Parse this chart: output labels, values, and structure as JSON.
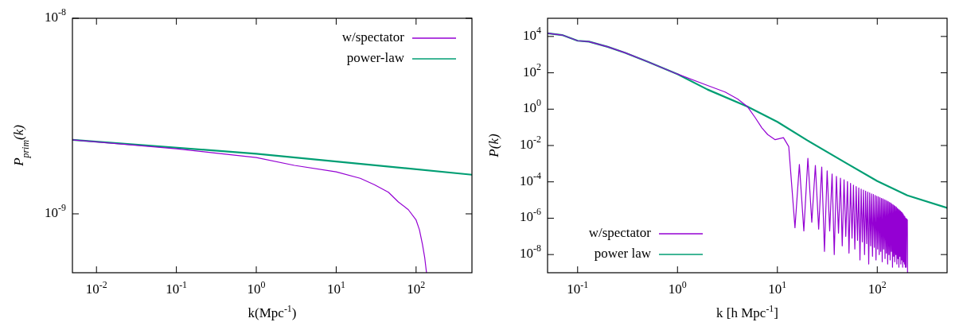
{
  "chart_data": [
    {
      "type": "line",
      "xlabel": "k(Mpc$^{-1}$)",
      "ylabel": "P$_{prim}$(k)",
      "log": "xy",
      "legend": "top right",
      "xlim": [
        0.005,
        500
      ],
      "ylim": [
        5e-10,
        1e-08
      ],
      "xticks": [
        {
          "value": 0.01,
          "label": "10$^{-2}$"
        },
        {
          "value": 0.1,
          "label": "10$^{-1}$"
        },
        {
          "value": 1,
          "label": "10$^{0}$"
        },
        {
          "value": 10,
          "label": "10$^{1}$"
        },
        {
          "value": 100,
          "label": "10$^{2}$"
        }
      ],
      "yticks": [
        {
          "value": 1e-09,
          "label": "10$^{-9}$"
        },
        {
          "value": 1e-08,
          "label": "10$^{-8}$"
        }
      ],
      "series": [
        {
          "name": "w/spectator",
          "color": "#9400d3",
          "x": [
            0.005,
            0.1,
            0.3,
            1,
            3,
            10,
            20,
            30,
            45,
            60,
            80,
            100,
            110,
            120,
            128,
            135
          ],
          "values": [
            2.39e-09,
            2.15e-09,
            2.05e-09,
            1.94e-09,
            1.77e-09,
            1.64e-09,
            1.52e-09,
            1.41e-09,
            1.29e-09,
            1.15e-09,
            1.05e-09,
            9.3e-10,
            8.3e-10,
            7e-10,
            6e-10,
            5e-10
          ]
        },
        {
          "name": "power-law",
          "color": "#009e73",
          "x": [
            0.005,
            1,
            500
          ],
          "values": [
            2.39e-09,
            2.03e-09,
            1.585e-09
          ]
        }
      ]
    },
    {
      "type": "line",
      "xlabel": "k [h Mpc$^{-1}$]",
      "ylabel": "P(k)",
      "log": "xy",
      "legend": "bottom left",
      "xlim": [
        0.05,
        500
      ],
      "ylim": [
        1e-09,
        100000.0
      ],
      "xticks": [
        {
          "value": 0.1,
          "label": "10$^{-1}$"
        },
        {
          "value": 1,
          "label": "10$^{0}$"
        },
        {
          "value": 10,
          "label": "10$^{1}$"
        },
        {
          "value": 100,
          "label": "10$^{2}$"
        }
      ],
      "yticks": [
        {
          "value": 1e-08,
          "label": "10$^{-8}$"
        },
        {
          "value": 1e-06,
          "label": "10$^{-6}$"
        },
        {
          "value": 0.0001,
          "label": "10$^{-4}$"
        },
        {
          "value": 0.01,
          "label": "10$^{-2}$"
        },
        {
          "value": 1,
          "label": "10$^{0}$"
        },
        {
          "value": 100,
          "label": "10$^{2}$"
        },
        {
          "value": 10000,
          "label": "10$^{4}$"
        }
      ],
      "series": [
        {
          "name": "w/spectator",
          "color": "#9400d3",
          "x": [
            0.05,
            0.07,
            0.1,
            0.13,
            0.2,
            0.3,
            0.5,
            1,
            2,
            3,
            4,
            5,
            6,
            7,
            8,
            9.5,
            11.5,
            13,
            15,
            16.6,
            18.4,
            20.2,
            22.1,
            24,
            25.9,
            27.8,
            29.6,
            31.5,
            33.4,
            35.3,
            37.1,
            39,
            40.9,
            42.8,
            44.6,
            46.5,
            48.4,
            50.3,
            52.1,
            54,
            55.9,
            57.8,
            59.6,
            61.5,
            63.4,
            65.3,
            67.1,
            69,
            70.9,
            72.8,
            74.6,
            76.5,
            78.4,
            80.3,
            82.1,
            84,
            85.9,
            87.8,
            89.6,
            91.5,
            93.4,
            95.3,
            97.1,
            99,
            100.9,
            102.8,
            104.6,
            106.5,
            108.4,
            110.3,
            112.1,
            114,
            115.9,
            117.8,
            119.6,
            121.5,
            123.4,
            125.3,
            127.1,
            129,
            130.9,
            132.8,
            134.6,
            136.5,
            138.4,
            140.3,
            142.1,
            144,
            145.9,
            147.8,
            149.6,
            151.5,
            153.4,
            155.3,
            157.1,
            159,
            160.9,
            162.8,
            164.6,
            166.5,
            168.4,
            170.3,
            172.1,
            174,
            175.9,
            177.8,
            179.6,
            181.5,
            183.4,
            185.3,
            187.1,
            189,
            190.9,
            192.8,
            194.6,
            196.5,
            200,
            201
          ],
          "values": [
            15000,
            12000,
            5800,
            5200,
            2700,
            1260,
            410,
            85,
            20,
            8.7,
            3.6,
            1.4,
            0.34,
            0.093,
            0.04,
            0.021,
            0.027,
            0.0087,
            3e-07,
            0.0009,
            2e-07,
            0.002,
            6e-07,
            0.0008,
            2.5e-07,
            0.00065,
            1.5e-08,
            0.0004,
            2e-07,
            0.00027,
            1e-08,
            0.0002,
            1.5e-07,
            0.00016,
            3e-08,
            0.00013,
            1e-07,
            0.000105,
            1.2e-08,
            8.3e-05,
            8e-08,
            6.6e-05,
            2e-08,
            5.5e-05,
            6e-08,
            4.6e-05,
            5e-09,
            4e-05,
            5e-08,
            3.5e-05,
            1e-08,
            3.1e-05,
            4e-08,
            2.75e-05,
            3e-09,
            2.45e-05,
            3e-08,
            2.2e-05,
            8e-09,
            2e-05,
            2.5e-08,
            1.8e-05,
            5e-09,
            1.6e-05,
            2e-08,
            1.5e-05,
            1e-08,
            1.35e-05,
            1.5e-08,
            1.23e-05,
            4e-09,
            1.15e-05,
            2e-08,
            1.05e-05,
            6e-09,
            9.8e-06,
            1.2e-08,
            8.9e-06,
            3e-09,
            8.1e-06,
            1e-08,
            7.4e-06,
            5e-09,
            6.8e-06,
            1.5e-08,
            6e-06,
            2e-09,
            5.4e-06,
            8e-09,
            4.9e-06,
            4e-09,
            4.5e-06,
            1e-08,
            4e-06,
            3e-09,
            3.5e-06,
            6e-09,
            3.1e-06,
            2e-09,
            2.8e-06,
            8e-09,
            2.5e-06,
            3e-09,
            2.2e-06,
            5e-09,
            2e-06,
            2e-09,
            1.7e-06,
            4e-09,
            1.4e-06,
            3e-09,
            1.2e-06,
            2e-09,
            1e-06,
            2e-09,
            9e-07,
            8e-07,
            1e-09
          ]
        },
        {
          "name": "power law",
          "color": "#009e73",
          "x": [
            0.05,
            0.07,
            0.1,
            0.13,
            0.2,
            0.3,
            0.5,
            1,
            2,
            5,
            10,
            20,
            50,
            100,
            200,
            500
          ],
          "values": [
            15000,
            12000,
            5800,
            5200,
            2700,
            1260,
            410,
            85,
            12,
            1.4,
            0.2,
            0.019,
            0.001,
            0.00011,
            1.8e-05,
            3.7e-06
          ]
        }
      ]
    }
  ]
}
